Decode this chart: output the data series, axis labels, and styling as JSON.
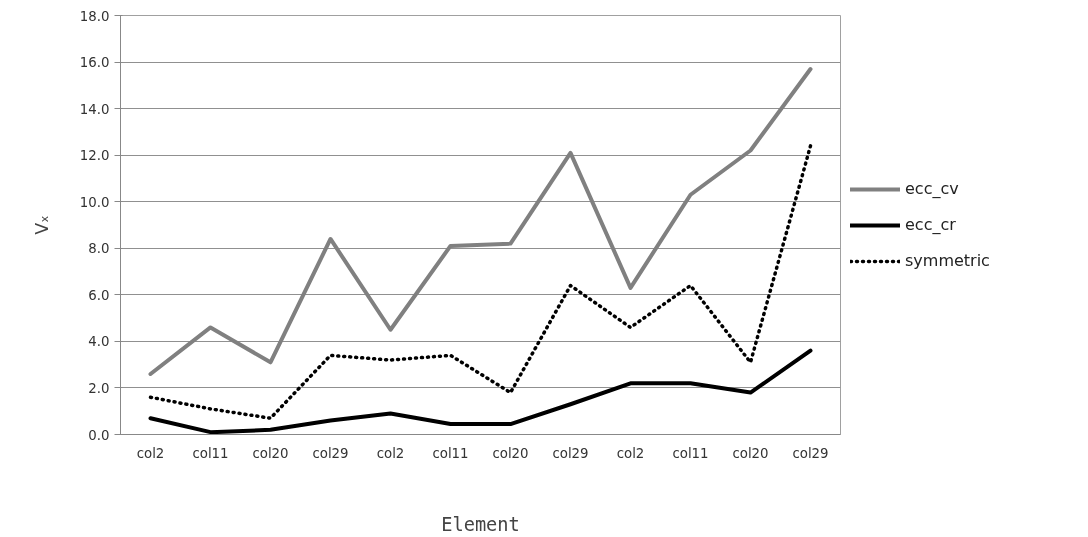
{
  "chart_data": {
    "type": "line",
    "xlabel": "Element",
    "ylabel": "Vₓ",
    "categories": [
      "col2",
      "col11",
      "col20",
      "col29",
      "col2",
      "col11",
      "col20",
      "col29",
      "col2",
      "col11",
      "col20",
      "col29"
    ],
    "series": [
      {
        "name": "ecc_cv",
        "color": "#808080",
        "line_style": "solid",
        "values": [
          2.6,
          4.6,
          3.1,
          8.4,
          4.5,
          8.1,
          8.2,
          12.1,
          6.3,
          10.3,
          12.2,
          15.7
        ]
      },
      {
        "name": "ecc_cr",
        "color": "#000000",
        "line_style": "solid",
        "values": [
          0.7,
          0.1,
          0.2,
          0.6,
          0.9,
          0.45,
          0.45,
          1.3,
          2.2,
          2.2,
          1.8,
          3.6
        ]
      },
      {
        "name": "symmetric",
        "color": "#000000",
        "line_style": "dotted",
        "values": [
          1.6,
          1.1,
          0.7,
          3.4,
          3.2,
          3.4,
          1.8,
          6.4,
          4.6,
          6.4,
          3.1,
          12.4
        ]
      }
    ],
    "ylim": [
      0,
      18
    ],
    "yticks": [
      {
        "value": 0,
        "label": "0.0"
      },
      {
        "value": 2,
        "label": "2.0"
      },
      {
        "value": 4,
        "label": "4.0"
      },
      {
        "value": 6,
        "label": "6.0"
      },
      {
        "value": 8,
        "label": "8.0"
      },
      {
        "value": 10,
        "label": "10.0"
      },
      {
        "value": 12,
        "label": "12.0"
      },
      {
        "value": 14,
        "label": "14.0"
      },
      {
        "value": 16,
        "label": "16.0"
      },
      {
        "value": 18,
        "label": "18.0"
      }
    ],
    "grid": "y",
    "legend": "right",
    "marker": "none"
  }
}
